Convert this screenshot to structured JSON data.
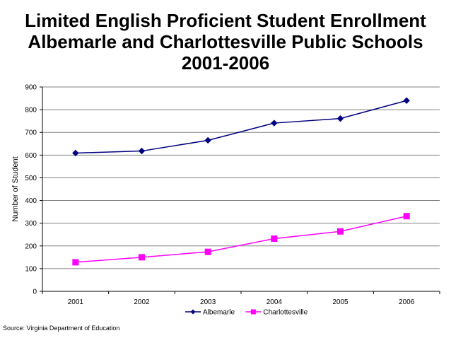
{
  "chart_data": {
    "type": "line",
    "title_lines": [
      "Limited English Proficient Student Enrollment",
      "Albemarle and Charlottesville Public Schools",
      "2001-2006"
    ],
    "xlabel": "",
    "ylabel": "Number of Student",
    "categories": [
      "2001",
      "2002",
      "2003",
      "2004",
      "2005",
      "2006"
    ],
    "yticks": [
      "0",
      "100",
      "200",
      "300",
      "400",
      "500",
      "600",
      "700",
      "800",
      "900"
    ],
    "ylim": [
      0,
      900
    ],
    "grid": true,
    "legend_position": "bottom",
    "series": [
      {
        "name": "Albemarle",
        "color": "#000080",
        "marker": "diamond",
        "values": [
          609,
          618,
          665,
          741,
          761,
          840
        ]
      },
      {
        "name": "Charlottesville",
        "color": "#ff00ff",
        "marker": "square",
        "values": [
          128,
          150,
          174,
          232,
          264,
          331
        ]
      }
    ]
  },
  "source_text": "Source: Virginia Department of Education"
}
